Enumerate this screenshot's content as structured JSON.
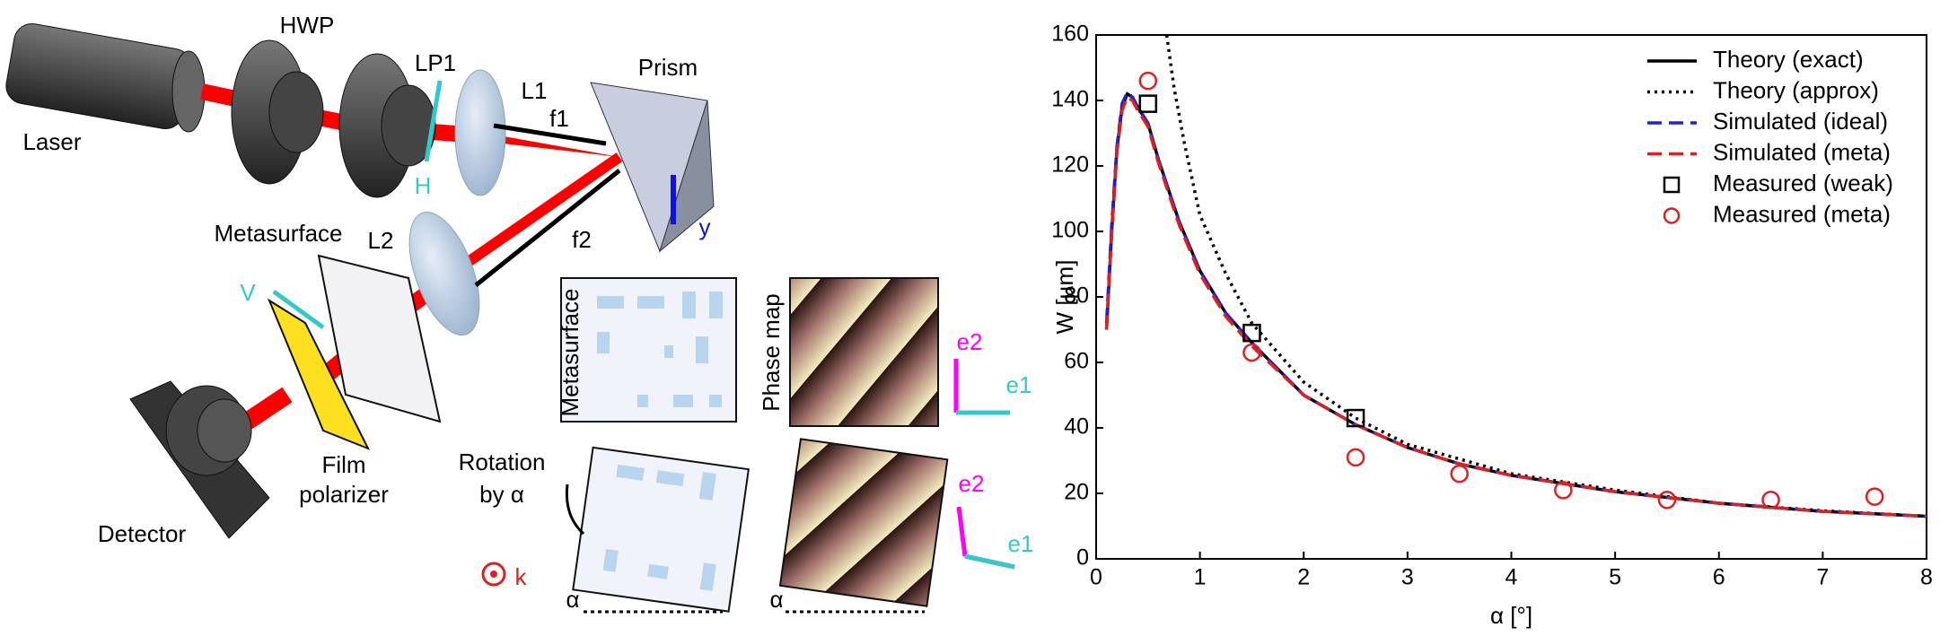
{
  "diagram": {
    "labels": [
      "Laser",
      "HWP",
      "LP1",
      "L1",
      "Prism",
      "H",
      "f1",
      "f2",
      "y",
      "Metasurface",
      "L2",
      "V",
      "Metasurface",
      "Phase map",
      "e2",
      "e1",
      "Rotation",
      "by α",
      "Film",
      "polarizer",
      "Detector",
      "k",
      "α",
      "α",
      "e2",
      "e1"
    ]
  },
  "chart_data": {
    "type": "line",
    "x_label": "α [°]",
    "y_label": "W [µm]",
    "xlim": [
      0,
      8
    ],
    "xticks": [
      0,
      1,
      2,
      3,
      4,
      5,
      6,
      7,
      8
    ],
    "ylim": [
      0,
      160
    ],
    "yticks": [
      0,
      20,
      40,
      60,
      80,
      100,
      120,
      140,
      160
    ],
    "legend": "upper right",
    "series": [
      {
        "name": "Theory (exact)",
        "color": "#000000",
        "style": "solid",
        "x": [
          0.1,
          0.15,
          0.2,
          0.25,
          0.3,
          0.35,
          0.4,
          0.5,
          0.6,
          0.8,
          1,
          1.25,
          1.5,
          2,
          2.5,
          3,
          3.5,
          4,
          5,
          6,
          7,
          8
        ],
        "values": [
          70,
          100,
          125,
          138,
          142,
          141,
          138,
          133,
          122,
          103,
          88,
          75,
          66,
          50,
          41,
          34,
          29,
          25.5,
          20.5,
          17,
          14.5,
          13
        ]
      },
      {
        "name": "Theory (approx)",
        "color": "#000000",
        "style": "dotted",
        "x": [
          0.68,
          0.75,
          0.85,
          1,
          1.25,
          1.5,
          2,
          2.5,
          3,
          4,
          5,
          6,
          7,
          8
        ],
        "values": [
          160,
          144,
          127,
          105,
          87,
          72,
          54,
          43,
          35,
          26,
          21,
          17,
          14.7,
          13
        ]
      },
      {
        "name": "Simulated (ideal)",
        "color": "#1f1fe0",
        "style": "dashed",
        "x": [
          0.1,
          0.15,
          0.2,
          0.25,
          0.3,
          0.35,
          0.4,
          0.5,
          0.6,
          0.8,
          1,
          1.25,
          1.5,
          2,
          2.5,
          3,
          3.5,
          4,
          5,
          6,
          7,
          8
        ],
        "values": [
          72,
          102,
          126,
          139,
          142.5,
          141,
          138,
          133,
          122,
          103,
          88,
          75,
          66,
          50,
          41,
          34,
          29,
          25.5,
          20.5,
          17,
          14.5,
          13
        ]
      },
      {
        "name": "Simulated (meta)",
        "color": "#e01f1f",
        "style": "dashed",
        "x": [
          0.1,
          0.15,
          0.2,
          0.25,
          0.3,
          0.35,
          0.4,
          0.5,
          0.6,
          0.8,
          1,
          1.25,
          1.5,
          2,
          2.5,
          3,
          3.5,
          4,
          5,
          6,
          7,
          8
        ],
        "values": [
          70,
          99,
          124,
          137,
          141,
          140,
          137,
          132,
          121,
          102,
          87,
          74,
          65,
          50,
          41,
          34,
          29,
          25.5,
          20.5,
          17,
          14.5,
          13
        ]
      },
      {
        "name": "Measured (weak)",
        "color": "#000000",
        "style": "square",
        "x": [
          0.5,
          1.5,
          2.5
        ],
        "values": [
          139,
          69,
          43
        ]
      },
      {
        "name": "Measured (meta)",
        "color": "#e01f1f",
        "style": "circle",
        "x": [
          0.5,
          1.5,
          2.5,
          3.5,
          4.5,
          5.5,
          6.5,
          7.5
        ],
        "values": [
          146,
          63,
          31,
          26,
          21,
          18,
          18,
          19
        ]
      }
    ]
  }
}
